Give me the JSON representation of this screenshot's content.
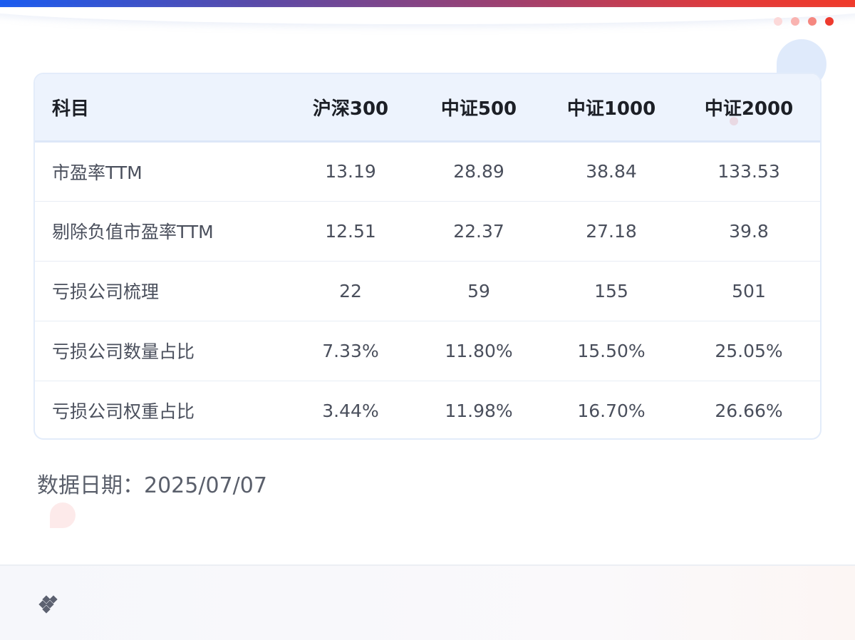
{
  "colors": {
    "accent_blue": "#1a5cf0",
    "accent_red": "#f03a2a",
    "header_bg": "#edf3fd",
    "dots": [
      "#fcd9d9",
      "#f9b3b0",
      "#f5877f",
      "#ee3a2e"
    ]
  },
  "icons": {
    "pagination": "dot-icon",
    "logo": "logo-icon"
  },
  "table": {
    "headers": [
      "科目",
      "沪深300",
      "中证500",
      "中证1000",
      "中证2000"
    ],
    "rows": [
      [
        "市盈率TTM",
        "13.19",
        "28.89",
        "38.84",
        "133.53"
      ],
      [
        "剔除负值市盈率TTM",
        "12.51",
        "22.37",
        "27.18",
        "39.8"
      ],
      [
        "亏损公司梳理",
        "22",
        "59",
        "155",
        "501"
      ],
      [
        "亏损公司数量占比",
        "7.33%",
        "11.80%",
        "15.50%",
        "25.05%"
      ],
      [
        "亏损公司权重占比",
        "3.44%",
        "11.98%",
        "16.70%",
        "26.66%"
      ]
    ]
  },
  "footnote": {
    "label": "数据日期：",
    "date": "2025/07/07"
  }
}
